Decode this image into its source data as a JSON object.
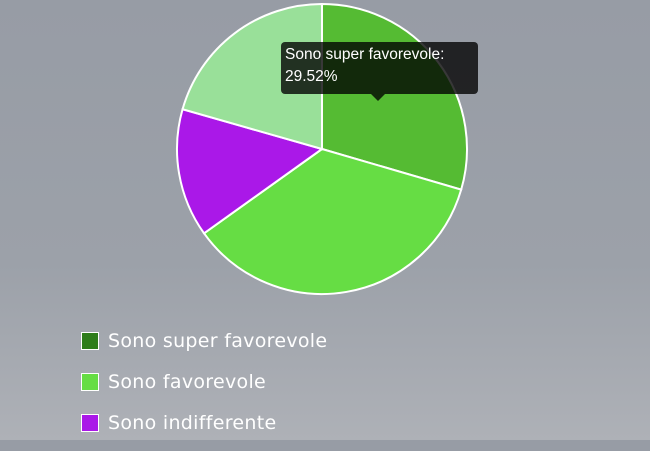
{
  "chart_data": {
    "type": "pie",
    "start_angle": "top, clockwise",
    "slices": [
      {
        "name": "Sono super favorevole",
        "value": 29.52,
        "color": "#55bb33",
        "legend_color": "#2e7d1a"
      },
      {
        "name": "Sono favorevole",
        "value": 35.6,
        "color": "#66dd44",
        "legend_color": "#66dd44"
      },
      {
        "name": "Sono indifferente",
        "value": 14.3,
        "color": "#aa18e8",
        "legend_color": "#aa18e8"
      },
      {
        "value": 20.58,
        "color": "#99e099"
      }
    ],
    "tooltip": {
      "label": "Sono super favorevole:",
      "value": "29.52%"
    },
    "legend_position": "bottom"
  }
}
